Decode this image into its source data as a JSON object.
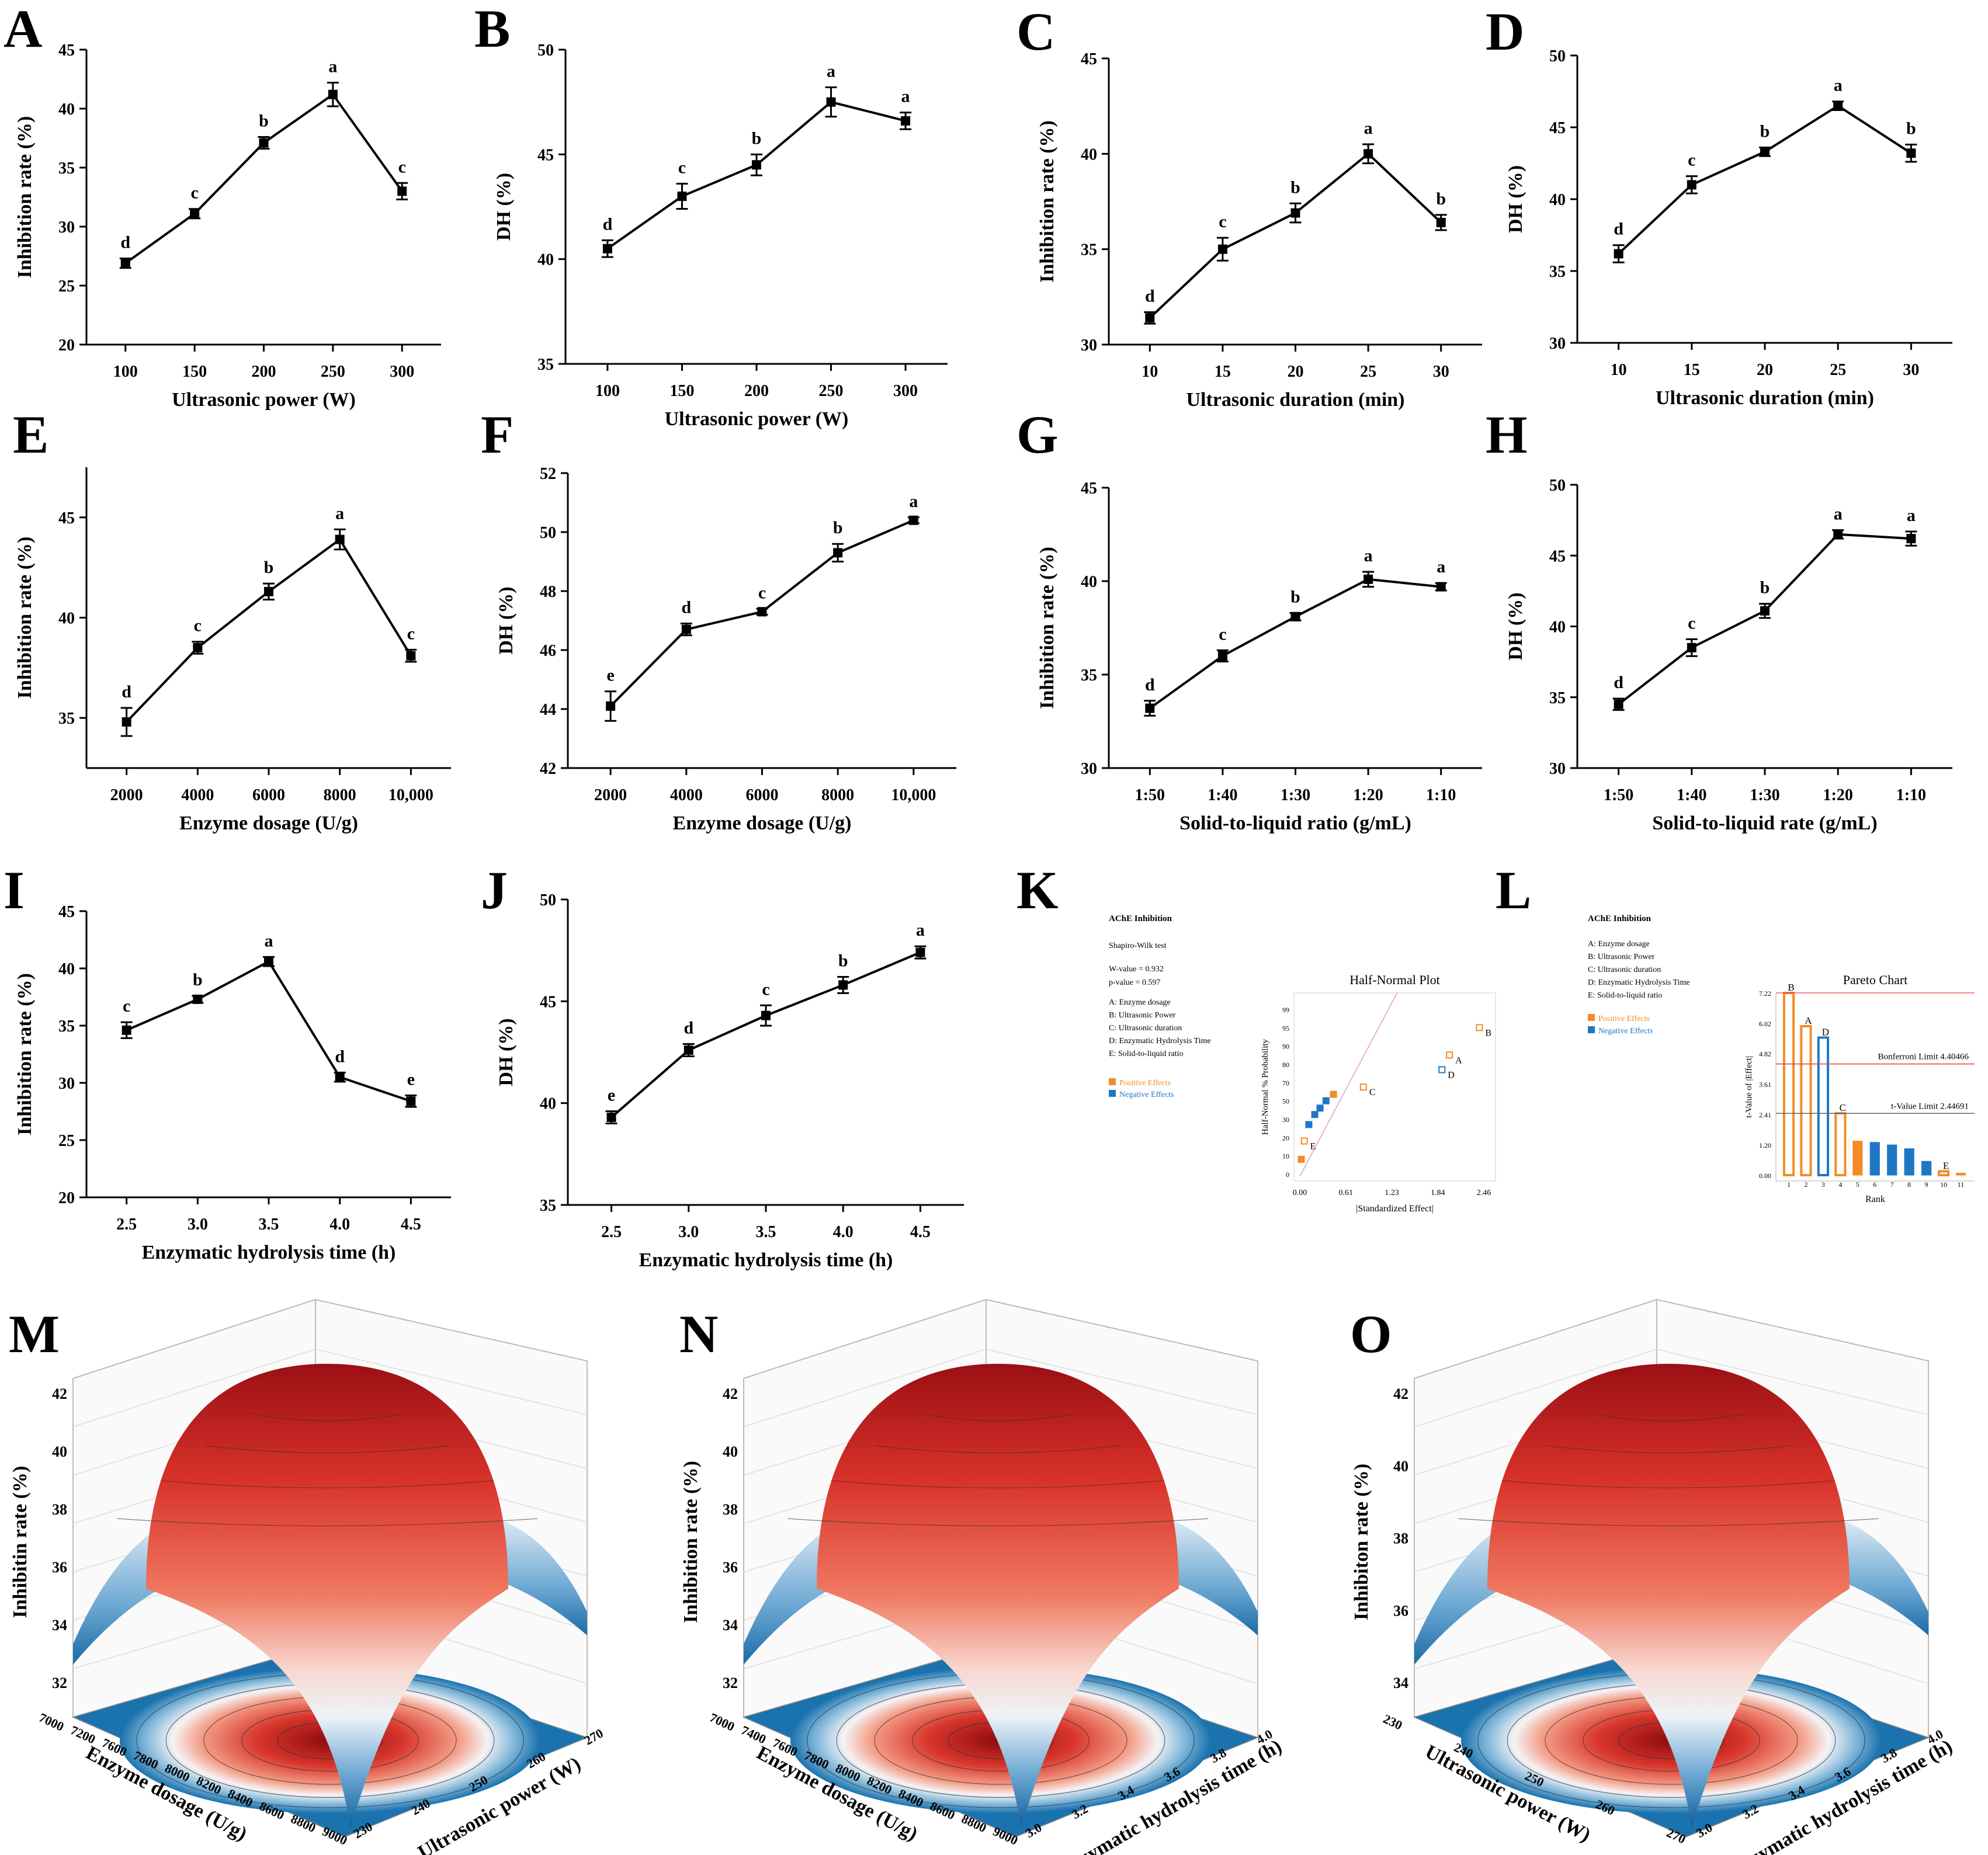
{
  "colors": {
    "line": "#000000",
    "orange": "#F28C28",
    "blue": "#1F77C4",
    "red": "#E04040"
  },
  "chart_data": [
    {
      "id": "A",
      "type": "line",
      "letter": "A",
      "xlabel": "Ultrasonic power (W)",
      "ylabel": "Inhibition rate (%)",
      "categories": [
        "100",
        "150",
        "200",
        "250",
        "300"
      ],
      "values": [
        26.9,
        31.1,
        37.1,
        41.2,
        33.0
      ],
      "errors": [
        0.4,
        0.4,
        0.5,
        1.0,
        0.7
      ],
      "labels": [
        "d",
        "c",
        "b",
        "a",
        "c"
      ],
      "ylim": [
        20,
        45
      ],
      "yticks": [
        20,
        25,
        30,
        35,
        40,
        45
      ]
    },
    {
      "id": "B",
      "type": "line",
      "letter": "B",
      "xlabel": "Ultrasonic power (W)",
      "ylabel": "DH (%)",
      "categories": [
        "100",
        "150",
        "200",
        "250",
        "300"
      ],
      "values": [
        40.5,
        43.0,
        44.5,
        47.5,
        46.6
      ],
      "errors": [
        0.4,
        0.6,
        0.5,
        0.7,
        0.4
      ],
      "labels": [
        "d",
        "c",
        "b",
        "a",
        "a"
      ],
      "ylim": [
        35,
        50
      ],
      "yticks": [
        35,
        40,
        45,
        50
      ]
    },
    {
      "id": "C",
      "type": "line",
      "letter": "C",
      "xlabel": "Ultrasonic duration (min)",
      "ylabel": "Inhibition rate (%)",
      "categories": [
        "10",
        "15",
        "20",
        "25",
        "30"
      ],
      "values": [
        31.4,
        35.0,
        36.9,
        40.0,
        36.4
      ],
      "errors": [
        0.3,
        0.6,
        0.5,
        0.5,
        0.4
      ],
      "labels": [
        "d",
        "c",
        "b",
        "a",
        "b"
      ],
      "ylim": [
        30,
        45
      ],
      "yticks": [
        30,
        35,
        40,
        45
      ]
    },
    {
      "id": "D",
      "type": "line",
      "letter": "D",
      "xlabel": "Ultrasonic duration (min)",
      "ylabel": "DH (%)",
      "categories": [
        "10",
        "15",
        "20",
        "25",
        "30"
      ],
      "values": [
        36.2,
        41.0,
        43.3,
        46.5,
        43.2
      ],
      "errors": [
        0.6,
        0.6,
        0.3,
        0.3,
        0.6
      ],
      "labels": [
        "d",
        "c",
        "b",
        "a",
        "b"
      ],
      "ylim": [
        30,
        50
      ],
      "yticks": [
        30,
        35,
        40,
        45,
        50
      ]
    },
    {
      "id": "E",
      "type": "line",
      "letter": "E",
      "xlabel": "Enzyme dosage (U/g)",
      "ylabel": "Inhibition rate (%)",
      "categories": [
        "2000",
        "4000",
        "6000",
        "8000",
        "10,000"
      ],
      "values": [
        34.8,
        38.5,
        41.3,
        43.9,
        38.1
      ],
      "errors": [
        0.7,
        0.3,
        0.4,
        0.5,
        0.3
      ],
      "labels": [
        "d",
        "c",
        "b",
        "a",
        "c"
      ],
      "ylim": [
        32.5,
        47.5
      ],
      "yticks": [
        35,
        40,
        45
      ]
    },
    {
      "id": "F",
      "type": "line",
      "letter": "F",
      "xlabel": "Enzyme dosage (U/g)",
      "ylabel": "DH (%)",
      "categories": [
        "2000",
        "4000",
        "6000",
        "8000",
        "10,000"
      ],
      "values": [
        44.1,
        46.7,
        47.3,
        49.3,
        50.4
      ],
      "errors": [
        0.5,
        0.2,
        0.1,
        0.3,
        0.1
      ],
      "labels": [
        "e",
        "d",
        "c",
        "b",
        "a"
      ],
      "ylim": [
        42,
        52
      ],
      "yticks": [
        42,
        44,
        46,
        48,
        50,
        52
      ]
    },
    {
      "id": "G",
      "type": "line",
      "letter": "G",
      "xlabel": "Solid-to-liquid ratio (g/mL)",
      "ylabel": "Inhibition rate (%)",
      "categories": [
        "1:50",
        "1:40",
        "1:30",
        "1:20",
        "1:10"
      ],
      "values": [
        33.2,
        36.0,
        38.1,
        40.1,
        39.7
      ],
      "errors": [
        0.4,
        0.3,
        0.2,
        0.4,
        0.2
      ],
      "labels": [
        "d",
        "c",
        "b",
        "a",
        "a"
      ],
      "ylim": [
        30,
        45
      ],
      "yticks": [
        30,
        35,
        40,
        45
      ]
    },
    {
      "id": "H",
      "type": "line",
      "letter": "H",
      "xlabel": "Solid-to-liquid rate (g/mL)",
      "ylabel": "DH (%)",
      "categories": [
        "1:50",
        "1:40",
        "1:30",
        "1:20",
        "1:10"
      ],
      "values": [
        34.5,
        38.5,
        41.1,
        46.5,
        46.2
      ],
      "errors": [
        0.4,
        0.6,
        0.5,
        0.3,
        0.5
      ],
      "labels": [
        "d",
        "c",
        "b",
        "a",
        "a"
      ],
      "ylim": [
        30,
        50
      ],
      "yticks": [
        30,
        35,
        40,
        45,
        50
      ]
    },
    {
      "id": "I",
      "type": "line",
      "letter": "I",
      "xlabel": "Enzymatic hydrolysis time (h)",
      "ylabel": "Inhibition rate (%)",
      "categories": [
        "2.5",
        "3.0",
        "3.5",
        "4.0",
        "4.5"
      ],
      "values": [
        34.6,
        37.3,
        40.6,
        30.5,
        28.4
      ],
      "errors": [
        0.7,
        0.3,
        0.4,
        0.4,
        0.5
      ],
      "labels": [
        "c",
        "b",
        "a",
        "d",
        "e"
      ],
      "ylim": [
        20,
        45
      ],
      "yticks": [
        20,
        25,
        30,
        35,
        40,
        45
      ]
    },
    {
      "id": "J",
      "type": "line",
      "letter": "J",
      "xlabel": "Enzymatic hydrolysis time (h)",
      "ylabel": "DH (%)",
      "categories": [
        "2.5",
        "3.0",
        "3.5",
        "4.0",
        "4.5"
      ],
      "values": [
        39.3,
        42.6,
        44.3,
        45.8,
        47.4
      ],
      "errors": [
        0.3,
        0.3,
        0.5,
        0.4,
        0.3
      ],
      "labels": [
        "e",
        "d",
        "c",
        "b",
        "a"
      ],
      "ylim": [
        35,
        50
      ],
      "yticks": [
        35,
        40,
        45,
        50
      ]
    },
    {
      "id": "K",
      "type": "scatter",
      "letter": "K",
      "title": "Half-Normal Plot",
      "xlabel": "|Standardized Effect|",
      "ylabel": "Half-Normal % Probability",
      "xticks": [
        "0.00",
        "0.61",
        "1.23",
        "1.84",
        "2.46"
      ],
      "xlim": [
        0,
        2.46
      ],
      "yticks": [
        "0",
        "10",
        "20",
        "30",
        "50",
        "70",
        "80",
        "90",
        "95",
        "99"
      ],
      "info": {
        "heading": "AChE Inhibition",
        "test": "Shapiro-Wilk test",
        "w_value": "W-value = 0.932",
        "p_value": "p-value = 0.597",
        "factors": [
          "A: Enzyme dosage",
          "B: Ultrasonic Power",
          "C: Ultrasonic duration",
          "D: Enzymatic Hydrolysis Time",
          "E: Solid-to-liquid ratio"
        ],
        "legend_pos": "Positive Effects",
        "legend_neg": "Negative Effects"
      },
      "points": [
        {
          "x": 2.4,
          "y": 95,
          "label": "B",
          "sign": "pos"
        },
        {
          "x": 2.0,
          "y": 85,
          "label": "A",
          "sign": "pos"
        },
        {
          "x": 1.9,
          "y": 77,
          "label": "D",
          "sign": "neg"
        },
        {
          "x": 0.85,
          "y": 65,
          "label": "C",
          "sign": "pos"
        },
        {
          "x": 0.45,
          "y": 57,
          "label": "",
          "sign": "pos"
        },
        {
          "x": 0.35,
          "y": 50,
          "label": "",
          "sign": "neg"
        },
        {
          "x": 0.27,
          "y": 42,
          "label": "",
          "sign": "neg"
        },
        {
          "x": 0.2,
          "y": 35,
          "label": "",
          "sign": "neg"
        },
        {
          "x": 0.12,
          "y": 27,
          "label": "",
          "sign": "neg"
        },
        {
          "x": 0.06,
          "y": 18,
          "label": "E",
          "sign": "pos"
        },
        {
          "x": 0.02,
          "y": 8,
          "label": "",
          "sign": "pos"
        }
      ]
    },
    {
      "id": "L",
      "type": "bar",
      "letter": "L",
      "title": "Pareto Chart",
      "xlabel": "Rank",
      "ylabel": "t-Value of |Effect|",
      "yticks": [
        "0.00",
        "1.20",
        "2.41",
        "3.61",
        "4.82",
        "6.02",
        "7.22"
      ],
      "ylim": [
        0,
        7.22
      ],
      "categories": [
        "1",
        "2",
        "3",
        "4",
        "5",
        "6",
        "7",
        "8",
        "9",
        "10",
        "11"
      ],
      "values": [
        7.22,
        5.9,
        5.45,
        2.45,
        1.35,
        1.3,
        1.2,
        1.05,
        0.55,
        0.15,
        0.08
      ],
      "signs": [
        "pos",
        "pos",
        "neg",
        "pos",
        "pos",
        "neg",
        "neg",
        "neg",
        "neg",
        "pos",
        "pos"
      ],
      "bar_labels": [
        "B",
        "A",
        "D",
        "C",
        "",
        "",
        "",
        "",
        "",
        "E",
        ""
      ],
      "bonferroni": {
        "value": 4.40466,
        "label": "Bonferroni Limit 4.40466"
      },
      "tlimit": {
        "value": 2.44691,
        "label": "t-Value Limit 2.44691"
      },
      "info": {
        "heading": "AChE Inhibition",
        "factors": [
          "A: Enzyme dosage",
          "B: Ultrasonic Power",
          "C: Ultrasonic duration",
          "D: Enzymatic Hydrolysis Time",
          "E: Solid-to-liquid ratio"
        ],
        "legend_pos": "Positive Effects",
        "legend_neg": "Negative Effects"
      }
    },
    {
      "id": "M",
      "type": "surface",
      "letter": "M",
      "zlabel": "Inhibitin rate (%)",
      "zticks": [
        "32",
        "34",
        "36",
        "38",
        "40",
        "42"
      ],
      "xlabel": "Enzyme dosage (U/g)",
      "xticks": [
        "7000",
        "7200",
        "7600",
        "7800",
        "8000",
        "8200",
        "8400",
        "8600",
        "8800",
        "9000"
      ],
      "ylabel": "Ultrasonic power (W)",
      "yticks": [
        "230",
        "240",
        "250",
        "260",
        "270"
      ]
    },
    {
      "id": "N",
      "type": "surface",
      "letter": "N",
      "zlabel": "Inhibition rate (%)",
      "zticks": [
        "32",
        "34",
        "36",
        "38",
        "40",
        "42"
      ],
      "xlabel": "Enzyme dosage (U/g)",
      "xticks": [
        "7000",
        "7400",
        "7600",
        "7800",
        "8000",
        "8200",
        "8400",
        "8600",
        "8800",
        "9000"
      ],
      "ylabel": "Enzymatic hydrolysis time (h)",
      "yticks": [
        "3.0",
        "3.2",
        "3.4",
        "3.6",
        "3.8",
        "4.0"
      ]
    },
    {
      "id": "O",
      "type": "surface",
      "letter": "O",
      "zlabel": "Inhibiton rate (%)",
      "zticks": [
        "34",
        "36",
        "38",
        "40",
        "42"
      ],
      "xlabel": "Ultrasonic power (W)",
      "xticks": [
        "230",
        "240",
        "250",
        "260",
        "270"
      ],
      "ylabel": "Enzymatic hydrolysis time (h)",
      "yticks": [
        "3.0",
        "3.2",
        "3.4",
        "3.6",
        "3.8",
        "4.0"
      ]
    }
  ]
}
